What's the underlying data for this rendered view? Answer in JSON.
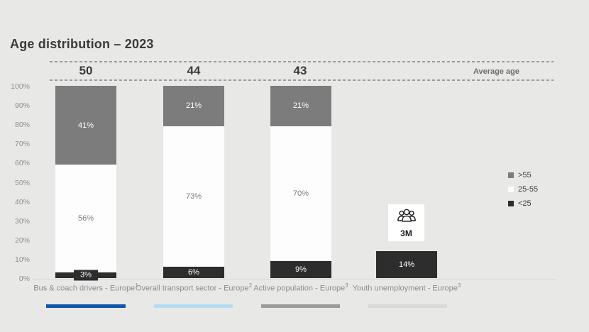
{
  "title": "Age distribution – 2023",
  "average_age_label": "Average age",
  "colors": {
    "background": "#e8e8e7",
    "over55": "#7c7c7c",
    "age25_55": "#fdfdfd",
    "under25": "#2d2d2d"
  },
  "legend": [
    {
      "label": ">55",
      "color": "#7c7c7c"
    },
    {
      "label": "25-55",
      "color": "#fdfdfd"
    },
    {
      "label": "<25",
      "color": "#2d2d2d"
    }
  ],
  "y_axis": [
    "100%",
    "90%",
    "80%",
    "70%",
    "60%",
    "50%",
    "40%",
    "30%",
    "20%",
    "10%",
    "0%"
  ],
  "bars": [
    {
      "label": "Bus & coach drivers - Europe",
      "sup": "1",
      "average": "50",
      "underline_color": "#0f56a8",
      "segments": [
        {
          "name": ">55",
          "label": "41%",
          "value": 41
        },
        {
          "name": "25-55",
          "label": "56%",
          "value": 56
        },
        {
          "name": "<25",
          "label": "3%",
          "value": 3
        }
      ]
    },
    {
      "label": "Overall transport sector - Europe",
      "sup": "2",
      "average": "44",
      "underline_color": "#b3def2",
      "segments": [
        {
          "name": ">55",
          "label": "21%",
          "value": 21
        },
        {
          "name": "25-55",
          "label": "73%",
          "value": 73
        },
        {
          "name": "<25",
          "label": "6%",
          "value": 6
        }
      ]
    },
    {
      "label": "Active population - Europe",
      "sup": "3",
      "average": "43",
      "underline_color": "#9b9b9a",
      "segments": [
        {
          "name": ">55",
          "label": "21%",
          "value": 21
        },
        {
          "name": "25-55",
          "label": "70%",
          "value": 70
        },
        {
          "name": "<25",
          "label": "9%",
          "value": 9
        }
      ]
    },
    {
      "label": "Youth unemployment - Europe",
      "sup": "3",
      "average": "",
      "underline_color": "#d9d9d7",
      "segments": [
        {
          "name": ">55",
          "label": "",
          "value": 0
        },
        {
          "name": "25-55",
          "label": "",
          "value": 0
        },
        {
          "name": "<25",
          "label": "14%",
          "value": 14
        }
      ],
      "annotation": {
        "value": "3M",
        "icon": "people-group-icon"
      }
    }
  ],
  "chart_data": {
    "type": "bar",
    "stacked": true,
    "title": "Age distribution – 2023",
    "categories": [
      "Bus & coach drivers - Europe¹",
      "Overall transport sector - Europe²",
      "Active population - Europe³",
      "Youth unemployment - Europe³"
    ],
    "series": [
      {
        "name": ">55",
        "color": "#7c7c7c",
        "values": [
          41,
          21,
          21,
          null
        ]
      },
      {
        "name": "25-55",
        "color": "#fdfdfd",
        "values": [
          56,
          73,
          70,
          null
        ]
      },
      {
        "name": "<25",
        "color": "#2d2d2d",
        "values": [
          3,
          6,
          9,
          14
        ]
      }
    ],
    "average_ages": [
      50,
      44,
      43,
      null
    ],
    "annotations": [
      {
        "category": "Youth unemployment - Europe³",
        "text": "3M"
      }
    ],
    "ylabel": "",
    "ylim": [
      0,
      100
    ],
    "y_ticks": [
      "0%",
      "10%",
      "20%",
      "30%",
      "40%",
      "50%",
      "60%",
      "70%",
      "80%",
      "90%",
      "100%"
    ],
    "legend_position": "right",
    "grid": false
  }
}
